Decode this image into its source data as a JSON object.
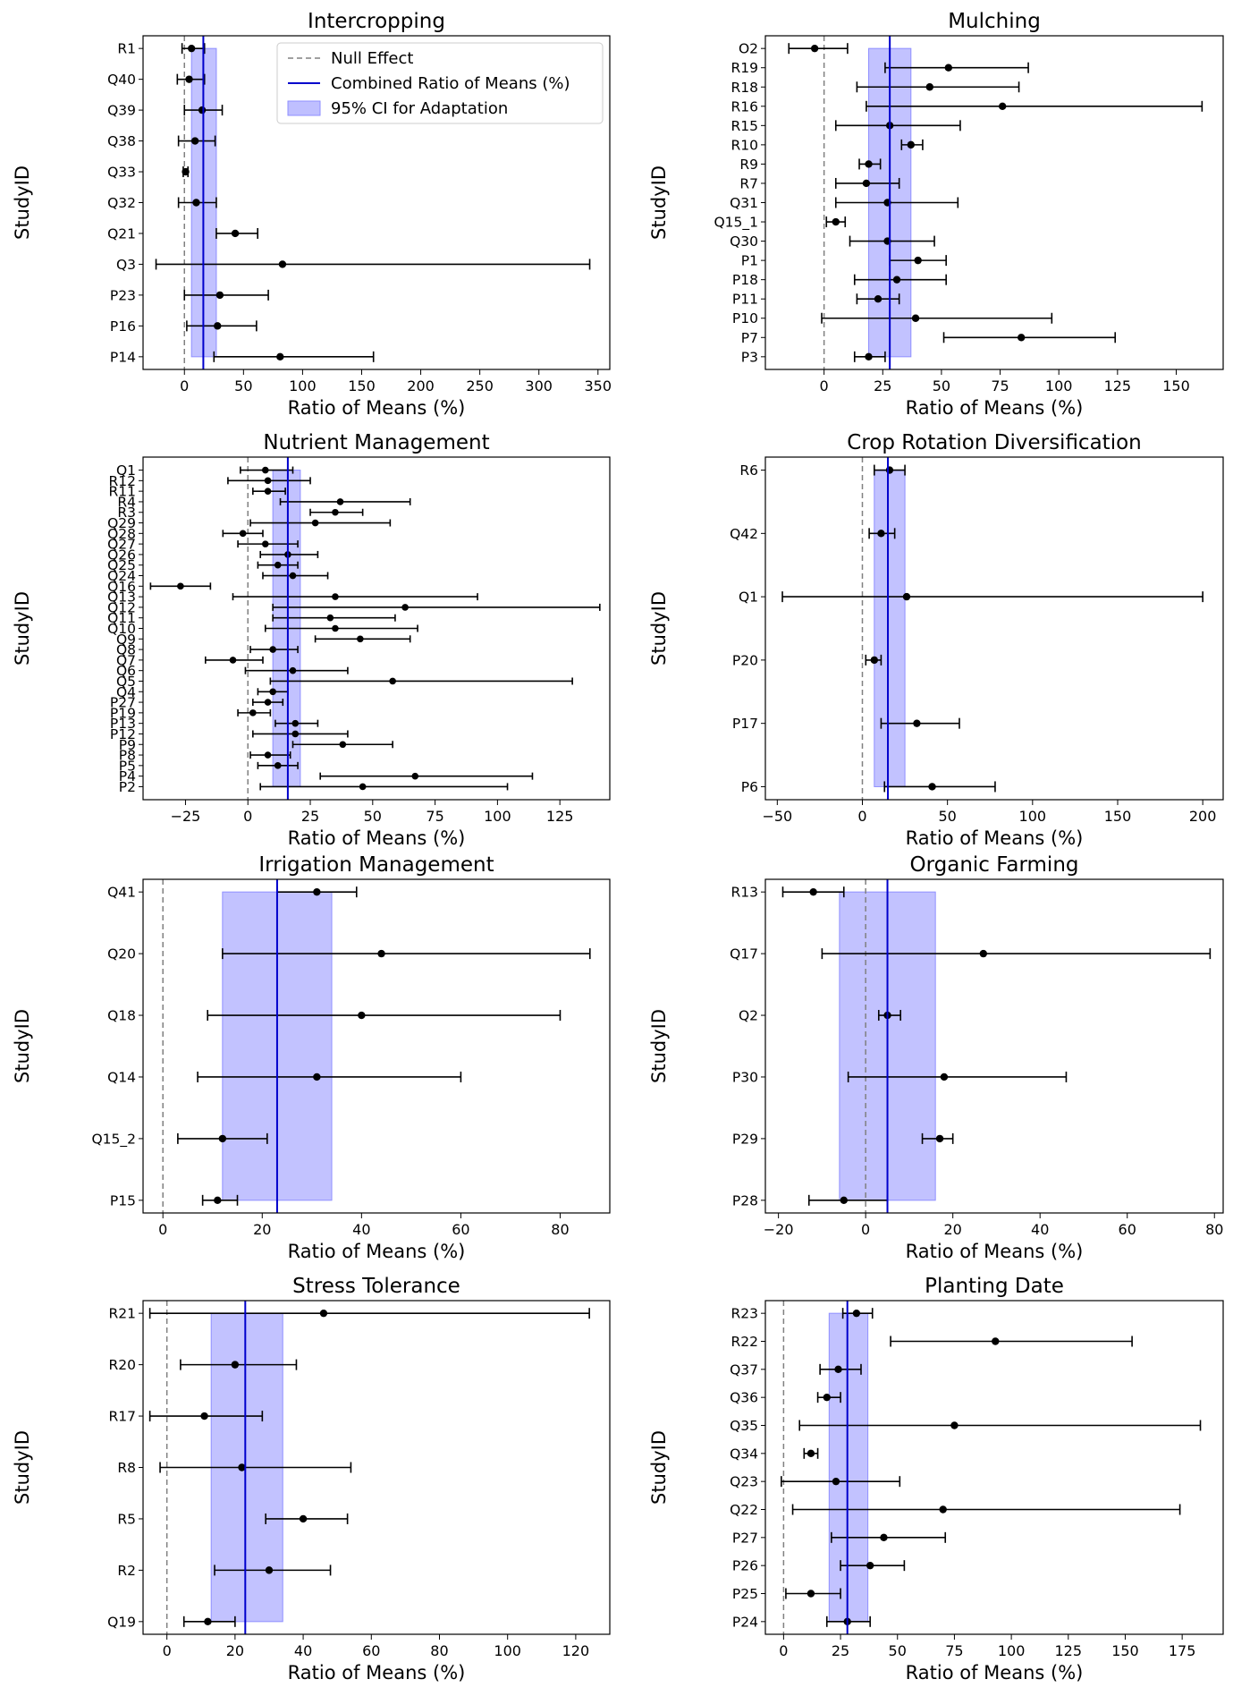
{
  "figure": {
    "legend": {
      "placement": "top-right of first panel",
      "entries": [
        {
          "label": "Null Effect",
          "style": "dashed",
          "color": "#808080"
        },
        {
          "label": "Combined Ratio of Means (%)",
          "style": "line",
          "color": "#0000cc"
        },
        {
          "label": "95% CI for Adaptation",
          "style": "patch",
          "color": "#aaaaff"
        }
      ]
    },
    "colors": {
      "ci_band": "#aaaaff",
      "combined": "#0000cc",
      "null": "#808080",
      "points": "#000000"
    }
  },
  "chart_data": [
    {
      "type": "forest",
      "title": "Intercropping",
      "xlabel": "Ratio of Means (%)",
      "ylabel": "StudyID",
      "xlim": [
        -35,
        360
      ],
      "xticks": [
        0,
        50,
        100,
        150,
        200,
        250,
        300,
        350
      ],
      "combined": 16,
      "ci_band": [
        6,
        27
      ],
      "studies": [
        {
          "id": "R1",
          "est": 6,
          "lo": -2,
          "hi": 17
        },
        {
          "id": "Q40",
          "est": 4,
          "lo": -6,
          "hi": 17
        },
        {
          "id": "Q39",
          "est": 15,
          "lo": 0,
          "hi": 32
        },
        {
          "id": "Q38",
          "est": 9,
          "lo": -5,
          "hi": 26
        },
        {
          "id": "Q33",
          "est": 1,
          "lo": -1,
          "hi": 3
        },
        {
          "id": "Q32",
          "est": 10,
          "lo": -5,
          "hi": 27
        },
        {
          "id": "Q21",
          "est": 43,
          "lo": 27,
          "hi": 62
        },
        {
          "id": "Q3",
          "est": 83,
          "lo": -24,
          "hi": 343
        },
        {
          "id": "P23",
          "est": 30,
          "lo": 0,
          "hi": 71
        },
        {
          "id": "P16",
          "est": 28,
          "lo": 2,
          "hi": 61
        },
        {
          "id": "P14",
          "est": 81,
          "lo": 25,
          "hi": 160
        }
      ]
    },
    {
      "type": "forest",
      "title": "Mulching",
      "xlabel": "Ratio of Means (%)",
      "ylabel": "StudyID",
      "xlim": [
        -25,
        170
      ],
      "xticks": [
        0,
        25,
        50,
        75,
        100,
        125,
        150
      ],
      "combined": 28,
      "ci_band": [
        19,
        37
      ],
      "studies": [
        {
          "id": "O2",
          "est": -4,
          "lo": -15,
          "hi": 10
        },
        {
          "id": "R19",
          "est": 53,
          "lo": 26,
          "hi": 87
        },
        {
          "id": "R18",
          "est": 45,
          "lo": 14,
          "hi": 83
        },
        {
          "id": "R16",
          "est": 76,
          "lo": 18,
          "hi": 161
        },
        {
          "id": "R15",
          "est": 28,
          "lo": 5,
          "hi": 58
        },
        {
          "id": "R10",
          "est": 37,
          "lo": 33,
          "hi": 42
        },
        {
          "id": "R9",
          "est": 19,
          "lo": 15,
          "hi": 24
        },
        {
          "id": "R7",
          "est": 18,
          "lo": 5,
          "hi": 32
        },
        {
          "id": "Q31",
          "est": 27,
          "lo": 5,
          "hi": 57
        },
        {
          "id": "Q15_1",
          "est": 5,
          "lo": 1,
          "hi": 9
        },
        {
          "id": "Q30",
          "est": 27,
          "lo": 11,
          "hi": 47
        },
        {
          "id": "P1",
          "est": 40,
          "lo": 28,
          "hi": 52
        },
        {
          "id": "P18",
          "est": 31,
          "lo": 13,
          "hi": 52
        },
        {
          "id": "P11",
          "est": 23,
          "lo": 14,
          "hi": 32
        },
        {
          "id": "P10",
          "est": 39,
          "lo": -1,
          "hi": 97
        },
        {
          "id": "P7",
          "est": 84,
          "lo": 51,
          "hi": 124
        },
        {
          "id": "P3",
          "est": 19,
          "lo": 13,
          "hi": 26
        }
      ]
    },
    {
      "type": "forest",
      "title": "Nutrient Management",
      "xlabel": "Ratio of Means (%)",
      "ylabel": "StudyID",
      "xlim": [
        -42,
        145
      ],
      "xticks": [
        -25,
        0,
        25,
        50,
        75,
        100,
        125
      ],
      "combined": 16,
      "ci_band": [
        10,
        21
      ],
      "studies": [
        {
          "id": "Q1",
          "est": 7,
          "lo": -3,
          "hi": 18
        },
        {
          "id": "R12",
          "est": 8,
          "lo": -8,
          "hi": 25
        },
        {
          "id": "R11",
          "est": 8,
          "lo": 2,
          "hi": 15
        },
        {
          "id": "R4",
          "est": 37,
          "lo": 13,
          "hi": 65
        },
        {
          "id": "R3",
          "est": 35,
          "lo": 25,
          "hi": 46
        },
        {
          "id": "Q29",
          "est": 27,
          "lo": 1,
          "hi": 57
        },
        {
          "id": "Q28",
          "est": -2,
          "lo": -10,
          "hi": 6
        },
        {
          "id": "Q27",
          "est": 7,
          "lo": -4,
          "hi": 20
        },
        {
          "id": "Q26",
          "est": 16,
          "lo": 5,
          "hi": 28
        },
        {
          "id": "Q25",
          "est": 12,
          "lo": 4,
          "hi": 20
        },
        {
          "id": "Q24",
          "est": 18,
          "lo": 6,
          "hi": 32
        },
        {
          "id": "Q16",
          "est": -27,
          "lo": -39,
          "hi": -15
        },
        {
          "id": "Q13",
          "est": 35,
          "lo": -6,
          "hi": 92
        },
        {
          "id": "Q12",
          "est": 63,
          "lo": 10,
          "hi": 141
        },
        {
          "id": "Q11",
          "est": 33,
          "lo": 10,
          "hi": 59
        },
        {
          "id": "Q10",
          "est": 35,
          "lo": 7,
          "hi": 68
        },
        {
          "id": "Q9",
          "est": 45,
          "lo": 27,
          "hi": 65
        },
        {
          "id": "Q8",
          "est": 10,
          "lo": 1,
          "hi": 20
        },
        {
          "id": "Q7",
          "est": -6,
          "lo": -17,
          "hi": 6
        },
        {
          "id": "Q6",
          "est": 18,
          "lo": -1,
          "hi": 40
        },
        {
          "id": "Q5",
          "est": 58,
          "lo": 9,
          "hi": 130
        },
        {
          "id": "Q4",
          "est": 10,
          "lo": 4,
          "hi": 16
        },
        {
          "id": "P27",
          "est": 8,
          "lo": 2,
          "hi": 14
        },
        {
          "id": "P19",
          "est": 2,
          "lo": -4,
          "hi": 9
        },
        {
          "id": "P13",
          "est": 19,
          "lo": 11,
          "hi": 28
        },
        {
          "id": "P12",
          "est": 19,
          "lo": 2,
          "hi": 40
        },
        {
          "id": "P9",
          "est": 38,
          "lo": 18,
          "hi": 58
        },
        {
          "id": "P8",
          "est": 8,
          "lo": 1,
          "hi": 17
        },
        {
          "id": "P5",
          "est": 12,
          "lo": 4,
          "hi": 20
        },
        {
          "id": "P4",
          "est": 67,
          "lo": 29,
          "hi": 114
        },
        {
          "id": "P2",
          "est": 46,
          "lo": 5,
          "hi": 104
        }
      ]
    },
    {
      "type": "forest",
      "title": "Crop Rotation Diversification",
      "xlabel": "Ratio of Means (%)",
      "ylabel": "StudyID",
      "xlim": [
        -57,
        212
      ],
      "xticks": [
        -50,
        0,
        50,
        100,
        150,
        200
      ],
      "combined": 15,
      "ci_band": [
        7,
        25
      ],
      "studies": [
        {
          "id": "R6",
          "est": 16,
          "lo": 7,
          "hi": 25
        },
        {
          "id": "Q42",
          "est": 11,
          "lo": 4,
          "hi": 19
        },
        {
          "id": "Q1",
          "est": 26,
          "lo": -47,
          "hi": 200
        },
        {
          "id": "P20",
          "est": 7,
          "lo": 2,
          "hi": 11
        },
        {
          "id": "P17",
          "est": 32,
          "lo": 11,
          "hi": 57
        },
        {
          "id": "P6",
          "est": 41,
          "lo": 13,
          "hi": 78
        }
      ]
    },
    {
      "type": "forest",
      "title": "Irrigation Management",
      "xlabel": "Ratio of Means (%)",
      "ylabel": "StudyID",
      "xlim": [
        -4,
        90
      ],
      "xticks": [
        0,
        20,
        40,
        60,
        80
      ],
      "combined": 23,
      "ci_band": [
        12,
        34
      ],
      "studies": [
        {
          "id": "Q41",
          "est": 31,
          "lo": 23,
          "hi": 39
        },
        {
          "id": "Q20",
          "est": 44,
          "lo": 12,
          "hi": 86
        },
        {
          "id": "Q18",
          "est": 40,
          "lo": 9,
          "hi": 80
        },
        {
          "id": "Q14",
          "est": 31,
          "lo": 7,
          "hi": 60
        },
        {
          "id": "Q15_2",
          "est": 12,
          "lo": 3,
          "hi": 21
        },
        {
          "id": "P15",
          "est": 11,
          "lo": 8,
          "hi": 15
        }
      ]
    },
    {
      "type": "forest",
      "title": "Organic Farming",
      "xlabel": "Ratio of Means (%)",
      "ylabel": "StudyID",
      "xlim": [
        -23,
        82
      ],
      "xticks": [
        -20,
        0,
        20,
        40,
        60,
        80
      ],
      "combined": 5,
      "ci_band": [
        -6,
        16
      ],
      "studies": [
        {
          "id": "R13",
          "est": -12,
          "lo": -19,
          "hi": -5
        },
        {
          "id": "Q17",
          "est": 27,
          "lo": -10,
          "hi": 79
        },
        {
          "id": "Q2",
          "est": 5,
          "lo": 3,
          "hi": 8
        },
        {
          "id": "P30",
          "est": 18,
          "lo": -4,
          "hi": 46
        },
        {
          "id": "P29",
          "est": 17,
          "lo": 13,
          "hi": 20
        },
        {
          "id": "P28",
          "est": -5,
          "lo": -13,
          "hi": 5
        }
      ]
    },
    {
      "type": "forest",
      "title": "Stress Tolerance",
      "xlabel": "Ratio of Means (%)",
      "ylabel": "StudyID",
      "xlim": [
        -7,
        130
      ],
      "xticks": [
        0,
        20,
        40,
        60,
        80,
        100,
        120
      ],
      "combined": 23,
      "ci_band": [
        13,
        34
      ],
      "studies": [
        {
          "id": "R21",
          "est": 46,
          "lo": -5,
          "hi": 124
        },
        {
          "id": "R20",
          "est": 20,
          "lo": 4,
          "hi": 38
        },
        {
          "id": "R17",
          "est": 11,
          "lo": -5,
          "hi": 28
        },
        {
          "id": "R8",
          "est": 22,
          "lo": -2,
          "hi": 54
        },
        {
          "id": "R5",
          "est": 40,
          "lo": 29,
          "hi": 53
        },
        {
          "id": "R2",
          "est": 30,
          "lo": 14,
          "hi": 48
        },
        {
          "id": "Q19",
          "est": 12,
          "lo": 5,
          "hi": 20
        }
      ]
    },
    {
      "type": "forest",
      "title": "Planting Date",
      "xlabel": "Ratio of Means (%)",
      "ylabel": "StudyID",
      "xlim": [
        -8,
        193
      ],
      "xticks": [
        0,
        25,
        50,
        75,
        100,
        125,
        150,
        175
      ],
      "combined": 28,
      "ci_band": [
        20,
        37
      ],
      "studies": [
        {
          "id": "R23",
          "est": 32,
          "lo": 26,
          "hi": 39
        },
        {
          "id": "R22",
          "est": 93,
          "lo": 47,
          "hi": 153
        },
        {
          "id": "Q37",
          "est": 24,
          "lo": 16,
          "hi": 34
        },
        {
          "id": "Q36",
          "est": 19,
          "lo": 15,
          "hi": 25
        },
        {
          "id": "Q35",
          "est": 75,
          "lo": 7,
          "hi": 183
        },
        {
          "id": "Q34",
          "est": 12,
          "lo": 9,
          "hi": 15
        },
        {
          "id": "Q23",
          "est": 23,
          "lo": -1,
          "hi": 51
        },
        {
          "id": "Q22",
          "est": 70,
          "lo": 4,
          "hi": 174
        },
        {
          "id": "P27",
          "est": 44,
          "lo": 21,
          "hi": 71
        },
        {
          "id": "P26",
          "est": 38,
          "lo": 25,
          "hi": 53
        },
        {
          "id": "P25",
          "est": 12,
          "lo": 1,
          "hi": 25
        },
        {
          "id": "P24",
          "est": 28,
          "lo": 19,
          "hi": 38
        }
      ]
    }
  ]
}
